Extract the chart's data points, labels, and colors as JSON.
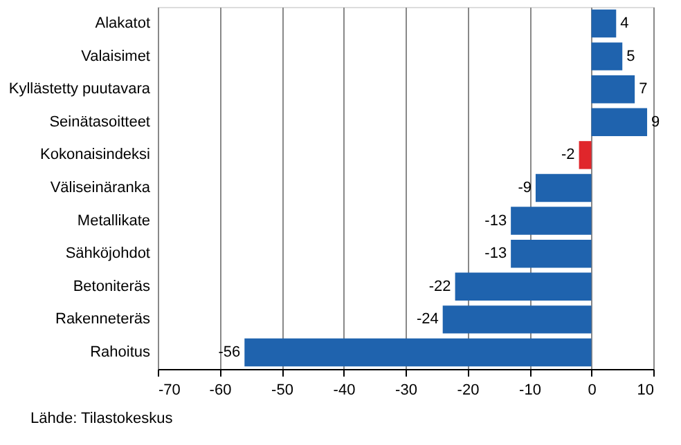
{
  "chart_data": {
    "type": "bar",
    "orientation": "horizontal",
    "categories": [
      "Alakatot",
      "Valaisimet",
      "Kyllästetty puutavara",
      "Seinätasoitteet",
      "Kokonaisindeksi",
      "Väliseinäranka",
      "Metallikate",
      "Sähköjohdot",
      "Betoniteräs",
      "Rakenneteräs",
      "Rahoitus"
    ],
    "values": [
      4,
      5,
      7,
      9,
      -2,
      -9,
      -13,
      -13,
      -22,
      -24,
      -56
    ],
    "colors": [
      "#1f63ae",
      "#1f63ae",
      "#1f63ae",
      "#1f63ae",
      "#e0262b",
      "#1f63ae",
      "#1f63ae",
      "#1f63ae",
      "#1f63ae",
      "#1f63ae",
      "#1f63ae"
    ],
    "xlim": [
      -70,
      10
    ],
    "xticks": [
      -70,
      -60,
      -50,
      -40,
      -30,
      -20,
      -10,
      0,
      10
    ],
    "grid": "x",
    "data_labels": true,
    "annotations": [
      "Lähde: Tilastokeskus"
    ]
  }
}
